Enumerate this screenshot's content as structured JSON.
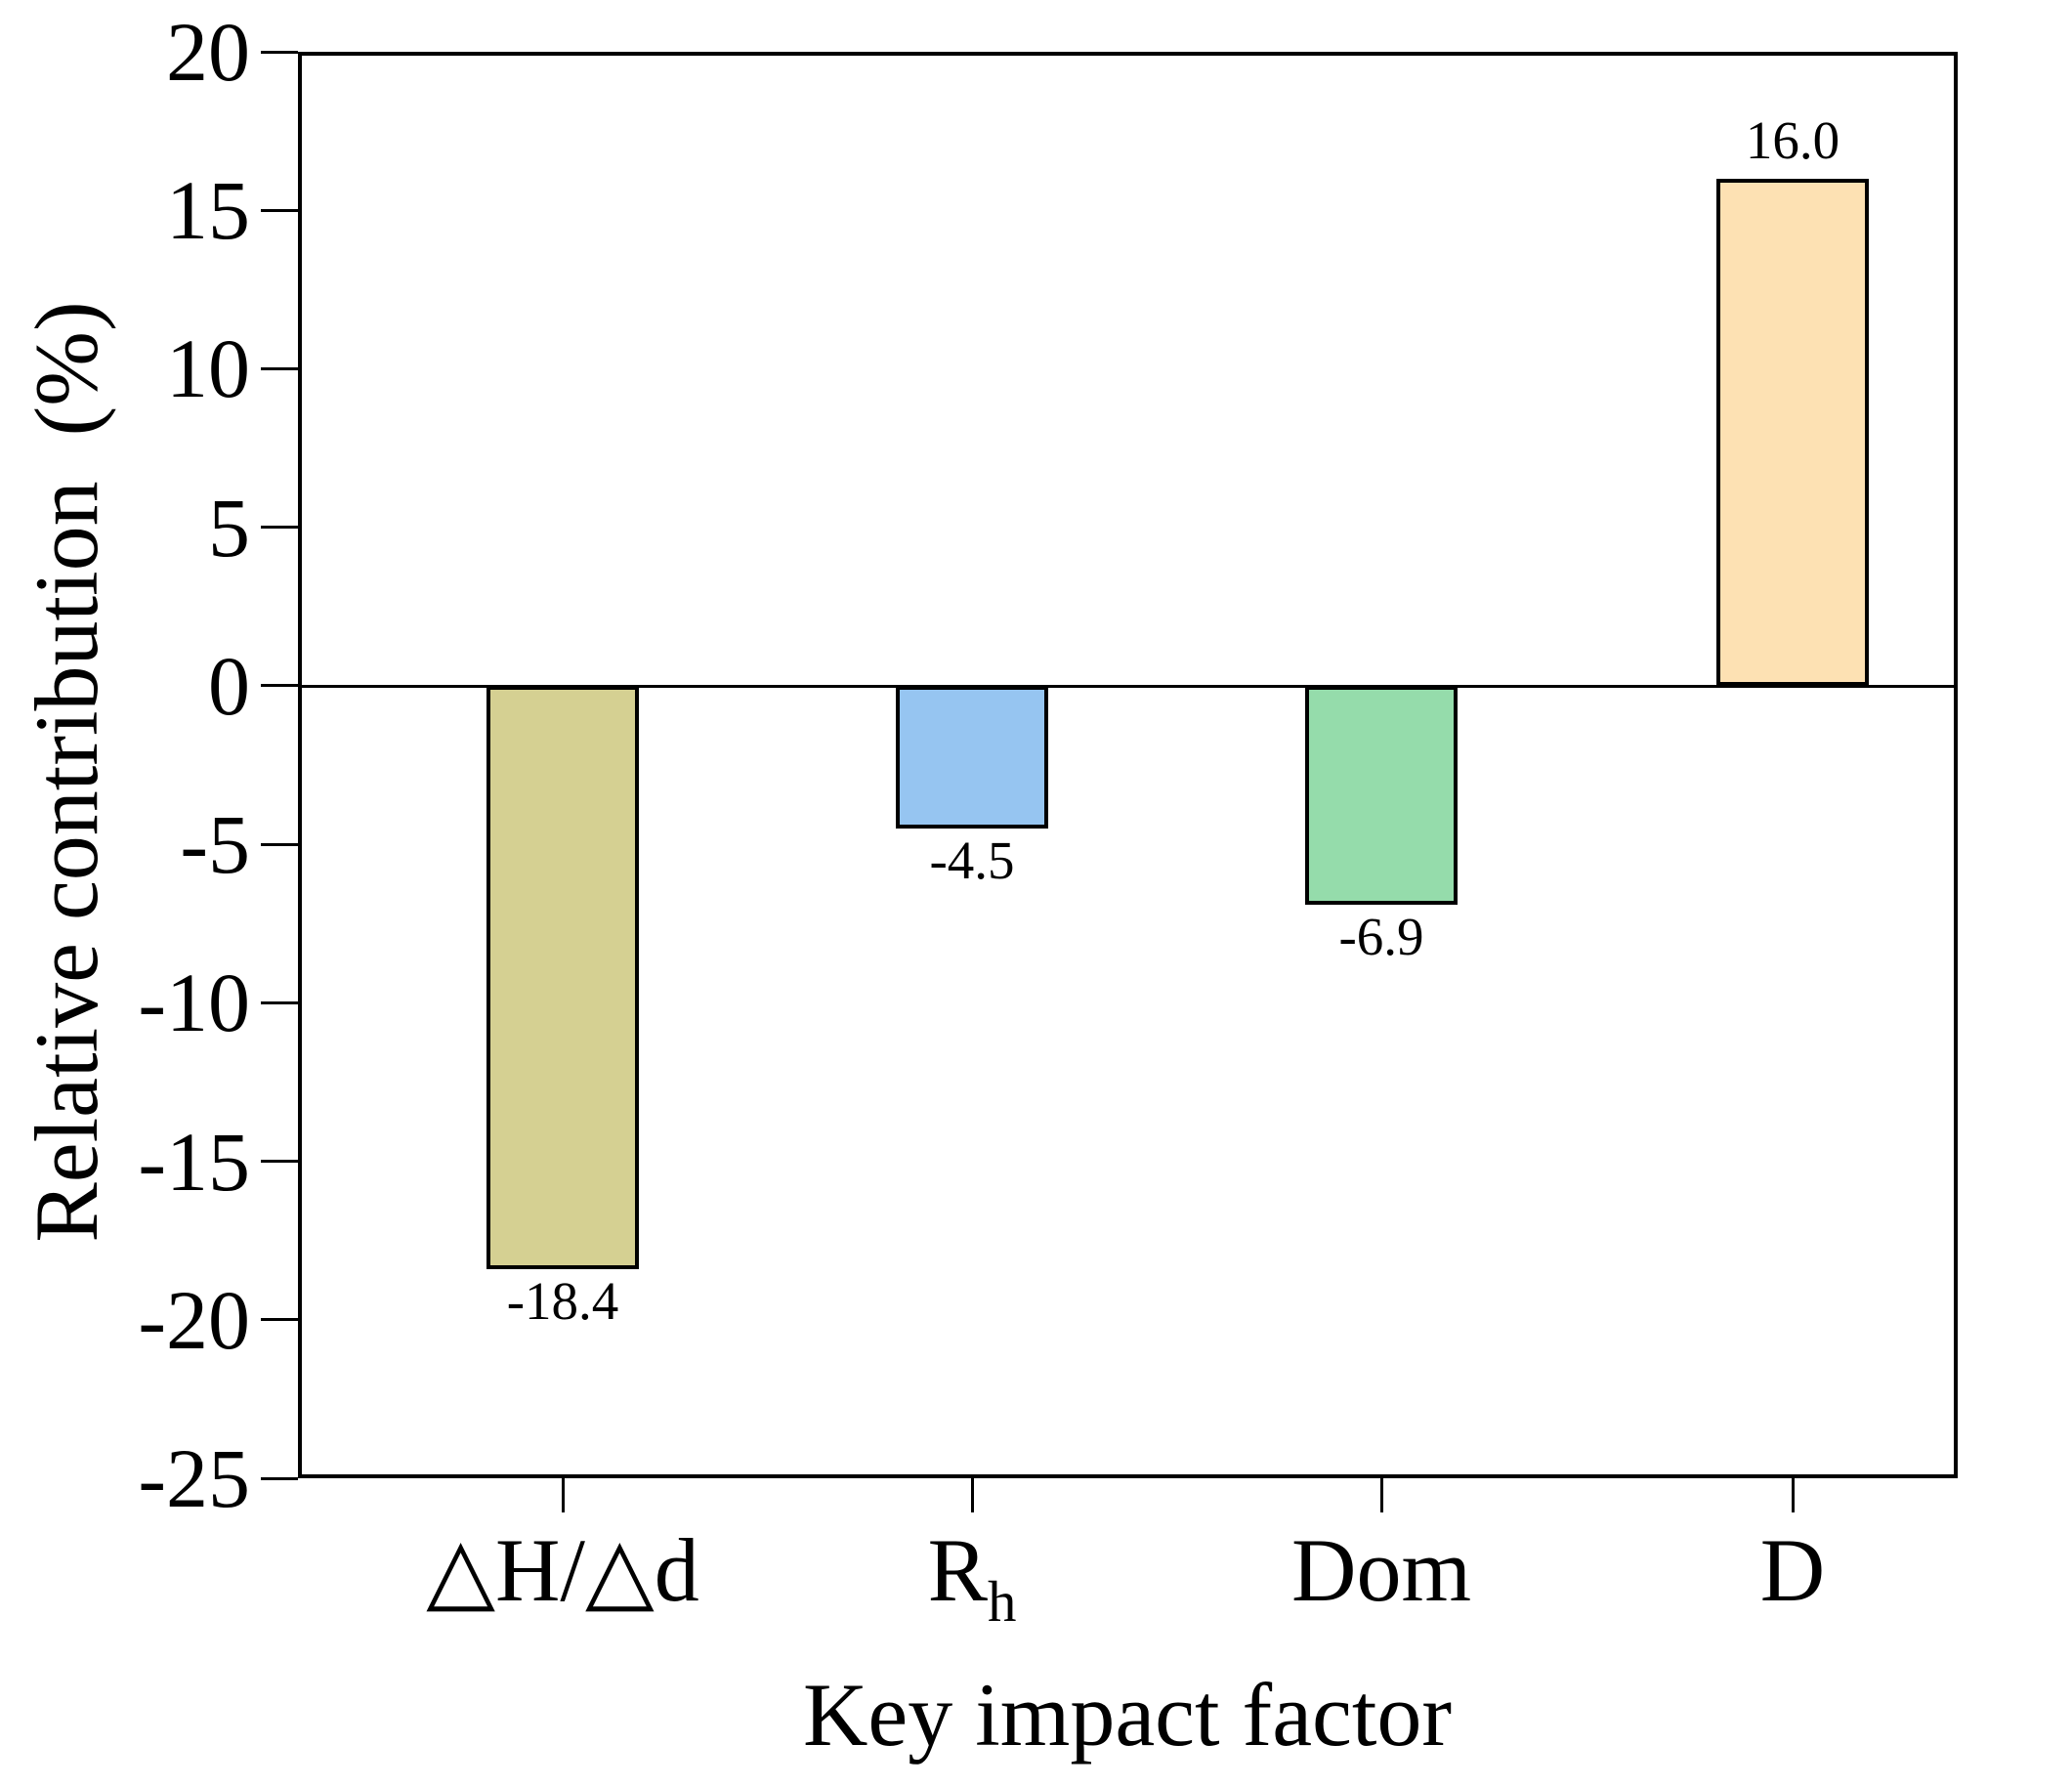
{
  "chart_data": {
    "type": "bar",
    "title": "",
    "xlabel": "Key impact factor",
    "ylabel": "Relative contribution  (%)",
    "categories": [
      "△H/△d",
      "Rh",
      "Dom",
      "D"
    ],
    "category_rich": [
      {
        "main": "△H/△d",
        "sub": ""
      },
      {
        "main": "R",
        "sub": "h"
      },
      {
        "main": "Dom",
        "sub": ""
      },
      {
        "main": "D",
        "sub": ""
      }
    ],
    "values": [
      -18.4,
      -4.5,
      -6.9,
      16.0
    ],
    "value_labels": [
      "-18.4",
      "-4.5",
      "-6.9",
      "16.0"
    ],
    "bar_colors": [
      "#d5d092",
      "#96c5f1",
      "#95dcab",
      "#fde1b3"
    ],
    "bar_edge_color": "#000000",
    "axis_color": "#000000",
    "background_color": "#ffffff",
    "ylim": [
      -25,
      20
    ],
    "yticks": [
      20,
      15,
      10,
      5,
      0,
      -5,
      -10,
      -15,
      -20,
      -25
    ],
    "ytick_labels": [
      "20",
      "15",
      "10",
      "5",
      "0",
      "-5",
      "-10",
      "-15",
      "-20",
      "-25"
    ],
    "zero_line": true,
    "grid": false,
    "legend": null
  }
}
